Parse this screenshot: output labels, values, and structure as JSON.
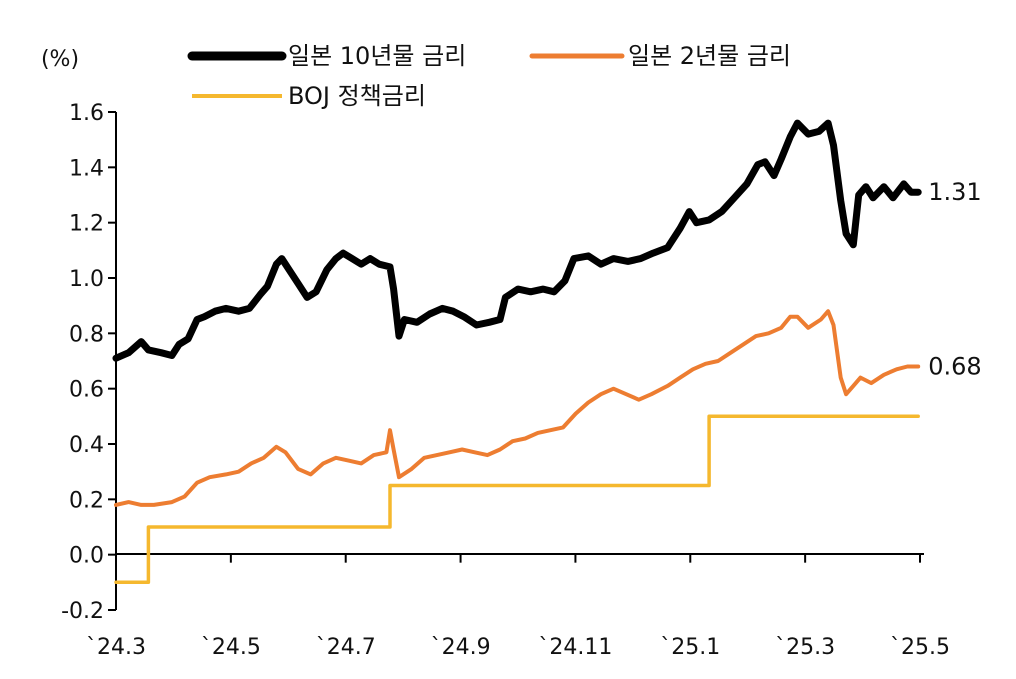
{
  "chart_data": {
    "type": "line",
    "y_unit_label": "(%)",
    "ylim": [
      -0.2,
      1.6
    ],
    "y_ticks": [
      "1.6",
      "1.4",
      "1.2",
      "1.0",
      "0.8",
      "0.6",
      "0.4",
      "0.2",
      "0.0",
      "-0.2"
    ],
    "x_ticks": [
      "`24.3",
      "`24.5",
      "`24.7",
      "`24.9",
      "`24.11",
      "`25.1",
      "`25.3",
      "`25.5"
    ],
    "x_range": [
      "2024-03-01",
      "2025-05-21"
    ],
    "grid": false,
    "legend_position": "top",
    "series": [
      {
        "name": "일본 10년물 금리",
        "color": "#000000",
        "end_label": "1.31",
        "points": [
          [
            "2024-03-01",
            0.71
          ],
          [
            "2024-03-08",
            0.73
          ],
          [
            "2024-03-15",
            0.77
          ],
          [
            "2024-03-19",
            0.74
          ],
          [
            "2024-03-26",
            0.73
          ],
          [
            "2024-04-01",
            0.72
          ],
          [
            "2024-04-05",
            0.76
          ],
          [
            "2024-04-10",
            0.78
          ],
          [
            "2024-04-15",
            0.85
          ],
          [
            "2024-04-19",
            0.86
          ],
          [
            "2024-04-25",
            0.88
          ],
          [
            "2024-05-01",
            0.89
          ],
          [
            "2024-05-08",
            0.88
          ],
          [
            "2024-05-14",
            0.89
          ],
          [
            "2024-05-20",
            0.94
          ],
          [
            "2024-05-24",
            0.97
          ],
          [
            "2024-05-29",
            1.05
          ],
          [
            "2024-06-01",
            1.07
          ],
          [
            "2024-06-06",
            1.02
          ],
          [
            "2024-06-10",
            0.98
          ],
          [
            "2024-06-15",
            0.93
          ],
          [
            "2024-06-20",
            0.95
          ],
          [
            "2024-06-26",
            1.03
          ],
          [
            "2024-07-01",
            1.07
          ],
          [
            "2024-07-05",
            1.09
          ],
          [
            "2024-07-10",
            1.07
          ],
          [
            "2024-07-15",
            1.05
          ],
          [
            "2024-07-20",
            1.07
          ],
          [
            "2024-07-25",
            1.05
          ],
          [
            "2024-07-31",
            1.04
          ],
          [
            "2024-08-02",
            0.96
          ],
          [
            "2024-08-05",
            0.79
          ],
          [
            "2024-08-08",
            0.85
          ],
          [
            "2024-08-15",
            0.84
          ],
          [
            "2024-08-22",
            0.87
          ],
          [
            "2024-08-29",
            0.89
          ],
          [
            "2024-09-04",
            0.88
          ],
          [
            "2024-09-10",
            0.86
          ],
          [
            "2024-09-17",
            0.83
          ],
          [
            "2024-09-24",
            0.84
          ],
          [
            "2024-09-30",
            0.85
          ],
          [
            "2024-10-03",
            0.93
          ],
          [
            "2024-10-10",
            0.96
          ],
          [
            "2024-10-17",
            0.95
          ],
          [
            "2024-10-24",
            0.96
          ],
          [
            "2024-10-30",
            0.95
          ],
          [
            "2024-11-05",
            0.99
          ],
          [
            "2024-11-10",
            1.07
          ],
          [
            "2024-11-18",
            1.08
          ],
          [
            "2024-11-25",
            1.05
          ],
          [
            "2024-12-02",
            1.07
          ],
          [
            "2024-12-10",
            1.06
          ],
          [
            "2024-12-17",
            1.07
          ],
          [
            "2024-12-24",
            1.09
          ],
          [
            "2025-01-01",
            1.11
          ],
          [
            "2025-01-08",
            1.18
          ],
          [
            "2025-01-13",
            1.24
          ],
          [
            "2025-01-17",
            1.2
          ],
          [
            "2025-01-24",
            1.21
          ],
          [
            "2025-01-31",
            1.24
          ],
          [
            "2025-02-07",
            1.29
          ],
          [
            "2025-02-14",
            1.34
          ],
          [
            "2025-02-20",
            1.41
          ],
          [
            "2025-02-24",
            1.42
          ],
          [
            "2025-03-01",
            1.37
          ],
          [
            "2025-03-05",
            1.43
          ],
          [
            "2025-03-10",
            1.51
          ],
          [
            "2025-03-14",
            1.56
          ],
          [
            "2025-03-20",
            1.52
          ],
          [
            "2025-03-26",
            1.53
          ],
          [
            "2025-03-31",
            1.56
          ],
          [
            "2025-04-03",
            1.48
          ],
          [
            "2025-04-07",
            1.28
          ],
          [
            "2025-04-10",
            1.16
          ],
          [
            "2025-04-14",
            1.12
          ],
          [
            "2025-04-17",
            1.3
          ],
          [
            "2025-04-21",
            1.33
          ],
          [
            "2025-04-25",
            1.29
          ],
          [
            "2025-05-01",
            1.33
          ],
          [
            "2025-05-06",
            1.29
          ],
          [
            "2025-05-12",
            1.34
          ],
          [
            "2025-05-16",
            1.31
          ],
          [
            "2025-05-20",
            1.31
          ]
        ]
      },
      {
        "name": "일본 2년물 금리",
        "color": "#ED7D31",
        "end_label": "0.68",
        "points": [
          [
            "2024-03-01",
            0.18
          ],
          [
            "2024-03-08",
            0.19
          ],
          [
            "2024-03-15",
            0.18
          ],
          [
            "2024-03-22",
            0.18
          ],
          [
            "2024-04-01",
            0.19
          ],
          [
            "2024-04-08",
            0.21
          ],
          [
            "2024-04-15",
            0.26
          ],
          [
            "2024-04-22",
            0.28
          ],
          [
            "2024-05-01",
            0.29
          ],
          [
            "2024-05-08",
            0.3
          ],
          [
            "2024-05-15",
            0.33
          ],
          [
            "2024-05-22",
            0.35
          ],
          [
            "2024-05-29",
            0.39
          ],
          [
            "2024-06-03",
            0.37
          ],
          [
            "2024-06-10",
            0.31
          ],
          [
            "2024-06-17",
            0.29
          ],
          [
            "2024-06-24",
            0.33
          ],
          [
            "2024-07-01",
            0.35
          ],
          [
            "2024-07-08",
            0.34
          ],
          [
            "2024-07-15",
            0.33
          ],
          [
            "2024-07-22",
            0.36
          ],
          [
            "2024-07-29",
            0.37
          ],
          [
            "2024-07-31",
            0.45
          ],
          [
            "2024-08-02",
            0.38
          ],
          [
            "2024-08-05",
            0.28
          ],
          [
            "2024-08-12",
            0.31
          ],
          [
            "2024-08-19",
            0.35
          ],
          [
            "2024-08-26",
            0.36
          ],
          [
            "2024-09-02",
            0.37
          ],
          [
            "2024-09-09",
            0.38
          ],
          [
            "2024-09-16",
            0.37
          ],
          [
            "2024-09-23",
            0.36
          ],
          [
            "2024-09-30",
            0.38
          ],
          [
            "2024-10-07",
            0.41
          ],
          [
            "2024-10-14",
            0.42
          ],
          [
            "2024-10-21",
            0.44
          ],
          [
            "2024-10-28",
            0.45
          ],
          [
            "2024-11-04",
            0.46
          ],
          [
            "2024-11-11",
            0.51
          ],
          [
            "2024-11-18",
            0.55
          ],
          [
            "2024-11-25",
            0.58
          ],
          [
            "2024-12-02",
            0.6
          ],
          [
            "2024-12-09",
            0.58
          ],
          [
            "2024-12-16",
            0.56
          ],
          [
            "2024-12-23",
            0.58
          ],
          [
            "2025-01-01",
            0.61
          ],
          [
            "2025-01-08",
            0.64
          ],
          [
            "2025-01-15",
            0.67
          ],
          [
            "2025-01-22",
            0.69
          ],
          [
            "2025-01-29",
            0.7
          ],
          [
            "2025-02-05",
            0.73
          ],
          [
            "2025-02-12",
            0.76
          ],
          [
            "2025-02-19",
            0.79
          ],
          [
            "2025-02-26",
            0.8
          ],
          [
            "2025-03-05",
            0.82
          ],
          [
            "2025-03-10",
            0.86
          ],
          [
            "2025-03-14",
            0.86
          ],
          [
            "2025-03-20",
            0.82
          ],
          [
            "2025-03-27",
            0.85
          ],
          [
            "2025-03-31",
            0.88
          ],
          [
            "2025-04-03",
            0.83
          ],
          [
            "2025-04-07",
            0.64
          ],
          [
            "2025-04-10",
            0.58
          ],
          [
            "2025-04-14",
            0.61
          ],
          [
            "2025-04-18",
            0.64
          ],
          [
            "2025-04-24",
            0.62
          ],
          [
            "2025-05-01",
            0.65
          ],
          [
            "2025-05-08",
            0.67
          ],
          [
            "2025-05-14",
            0.68
          ],
          [
            "2025-05-20",
            0.68
          ]
        ]
      },
      {
        "name": "BOJ 정책금리",
        "color": "#F5B82E",
        "step": true,
        "points": [
          [
            "2024-03-01",
            -0.1
          ],
          [
            "2024-03-19",
            -0.1
          ],
          [
            "2024-03-19",
            0.1
          ],
          [
            "2024-07-31",
            0.1
          ],
          [
            "2024-07-31",
            0.25
          ],
          [
            "2025-01-24",
            0.25
          ],
          [
            "2025-01-24",
            0.5
          ],
          [
            "2025-05-20",
            0.5
          ]
        ]
      }
    ]
  }
}
